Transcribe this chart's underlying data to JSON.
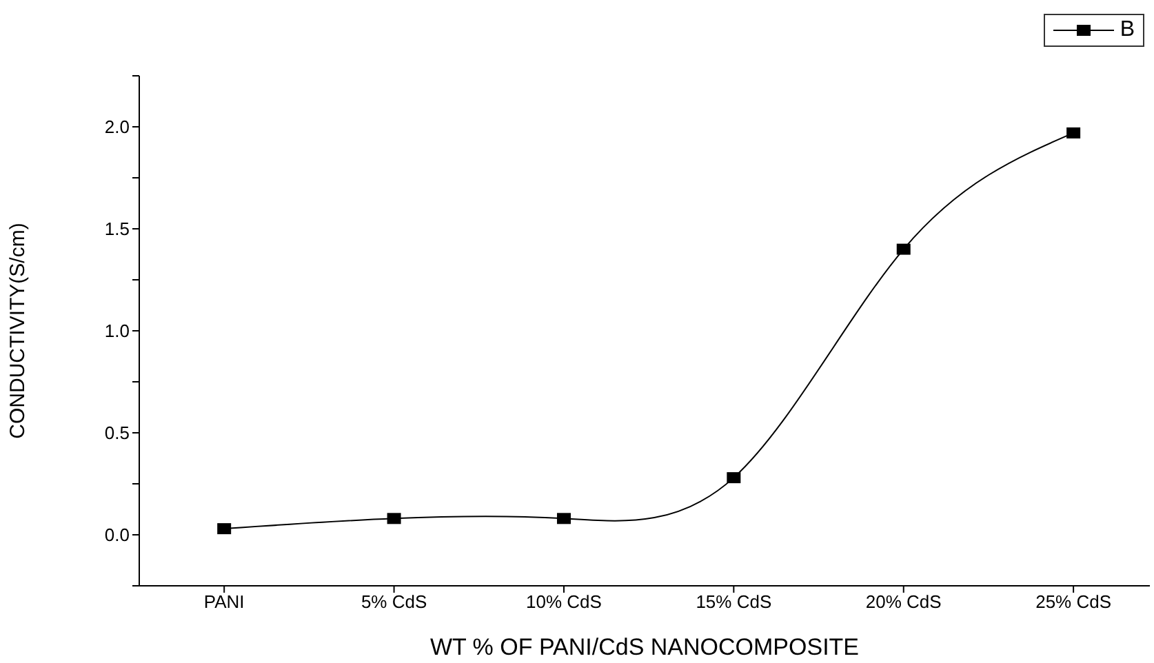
{
  "chart_data": {
    "type": "line",
    "xlabel": "WT % OF PANI/CdS NANOCOMPOSITE",
    "ylabel": "CONDUCTIVITY(S/cm)",
    "categories": [
      "PANI",
      "5% CdS",
      "10% CdS",
      "15% CdS",
      "20% CdS",
      "25% CdS"
    ],
    "series": [
      {
        "name": "B",
        "color": "#000000",
        "values": [
          0.03,
          0.08,
          0.08,
          0.28,
          1.4,
          1.97
        ]
      }
    ],
    "ylim": [
      -0.25,
      2.25
    ],
    "yticks": [
      {
        "value": -0.25,
        "label": null
      },
      {
        "value": 0,
        "label": "0.0"
      },
      {
        "value": 0.25,
        "label": null
      },
      0.5,
      {
        "value": 0.75,
        "label": null
      },
      {
        "value": 1,
        "label": "1.0"
      },
      {
        "value": 1.25,
        "label": null
      },
      1.5,
      {
        "value": 1.75,
        "label": null
      },
      {
        "value": 2,
        "label": "2.0"
      },
      {
        "value": 2.25,
        "label": null
      }
    ],
    "marker": "square",
    "line_style": "solid",
    "legend": "top right",
    "grid": false
  }
}
